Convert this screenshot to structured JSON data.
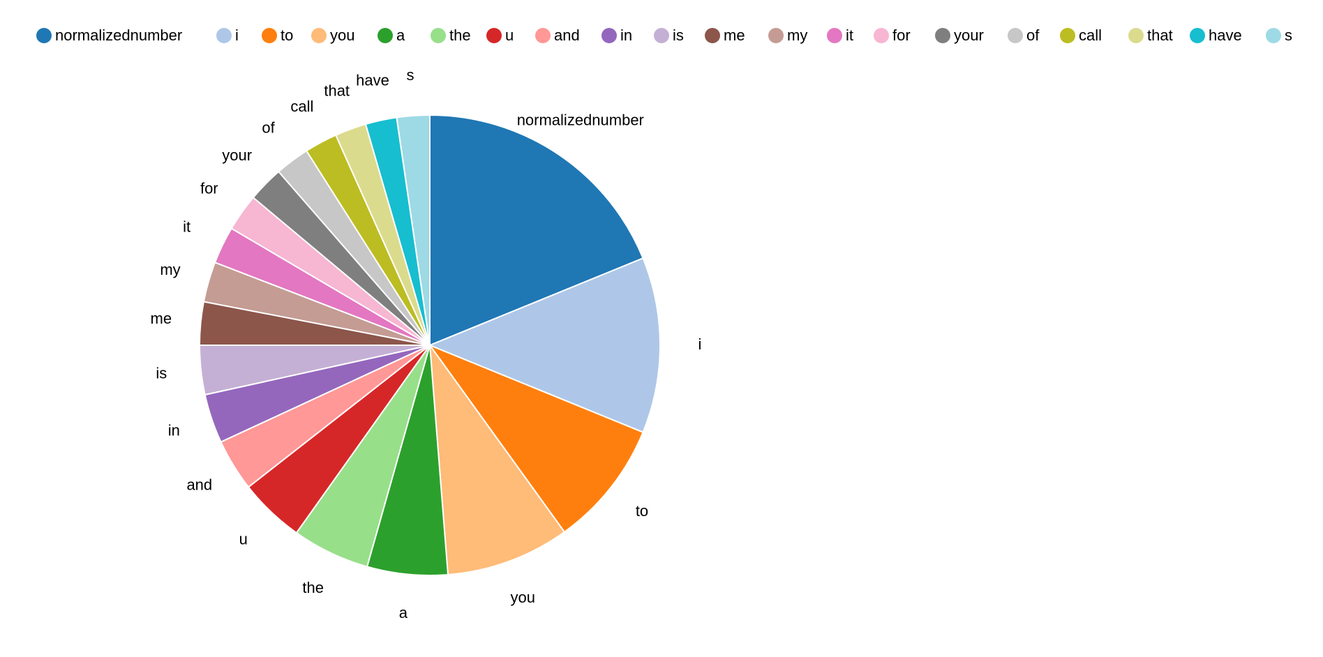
{
  "chart_data": {
    "type": "pie",
    "categories": [
      "normalizednumber",
      "i",
      "to",
      "you",
      "a",
      "the",
      "u",
      "and",
      "in",
      "is",
      "me",
      "my",
      "it",
      "for",
      "your",
      "of",
      "call",
      "that",
      "have",
      "s"
    ],
    "values": [
      18.0,
      11.8,
      8.5,
      8.3,
      5.4,
      5.2,
      4.4,
      3.5,
      3.3,
      3.3,
      2.9,
      2.7,
      2.5,
      2.5,
      2.4,
      2.3,
      2.2,
      2.1,
      2.1,
      2.2
    ],
    "colors": [
      "#1f77b4",
      "#aec7e8",
      "#ff7f0e",
      "#ffbb78",
      "#2ca02c",
      "#98df8a",
      "#d62728",
      "#ff9896",
      "#9467bd",
      "#c5b0d5",
      "#8c564b",
      "#c49c94",
      "#e377c2",
      "#f7b6d2",
      "#7f7f7f",
      "#c7c7c7",
      "#bcbd22",
      "#dbdb8d",
      "#17becf",
      "#9edae5"
    ],
    "legend_position": "top",
    "title": ""
  }
}
